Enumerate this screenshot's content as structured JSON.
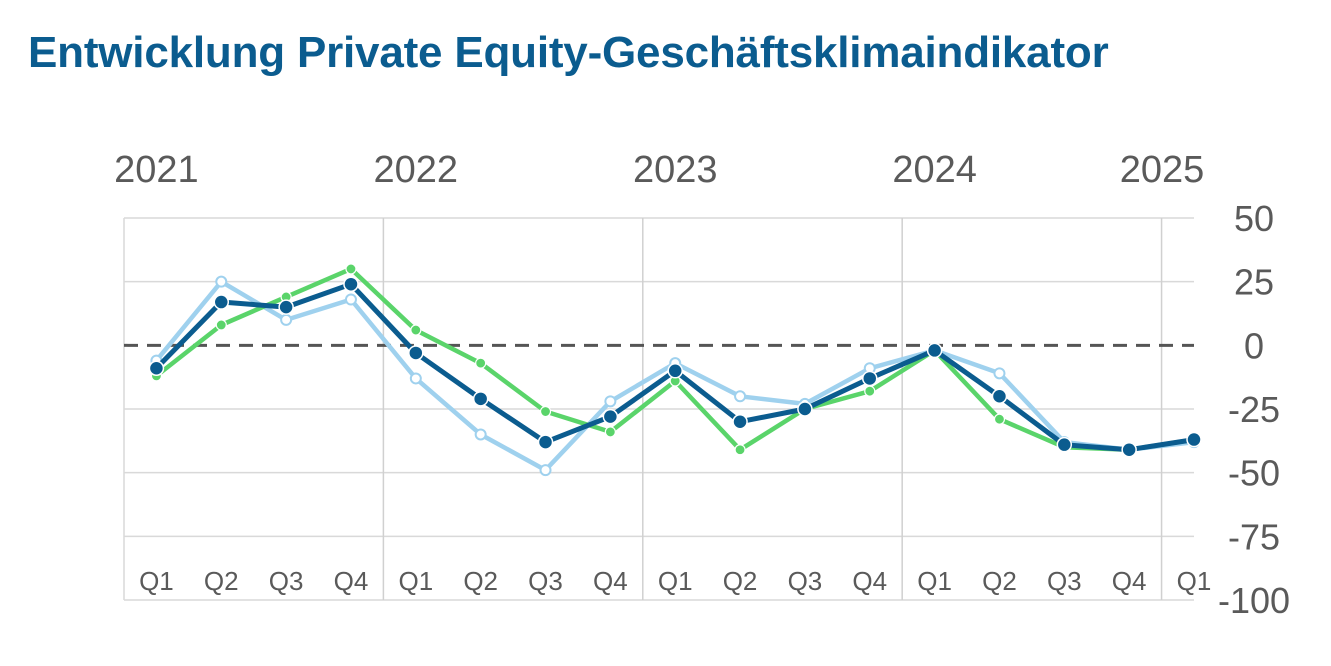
{
  "chart_data": {
    "type": "line",
    "title": "Entwicklung Private Equity-Geschäftsklimaindikator",
    "years": [
      "2021",
      "2022",
      "2023",
      "2024",
      "2025"
    ],
    "categories": [
      "Q1",
      "Q2",
      "Q3",
      "Q4",
      "Q1",
      "Q2",
      "Q3",
      "Q4",
      "Q1",
      "Q2",
      "Q3",
      "Q4",
      "Q1",
      "Q2",
      "Q3",
      "Q4",
      "Q1"
    ],
    "y_ticks": [
      "50",
      "25",
      "0",
      "-25",
      "-50",
      "-75",
      "-100"
    ],
    "ylim": [
      -100,
      50
    ],
    "zero_line": "dashed",
    "grid": true,
    "series": [
      {
        "color": "#9fd1ee",
        "marker": "open",
        "values": [
          -6,
          25,
          10,
          18,
          -13,
          -35,
          -49,
          -22,
          -7,
          -20,
          -23,
          -9,
          -2,
          -11,
          -38,
          -41,
          -38
        ]
      },
      {
        "color": "#5ad46a",
        "marker": "filled",
        "values": [
          -12,
          8,
          19,
          30,
          6,
          -7,
          -26,
          -34,
          -14,
          -41,
          -25,
          -18,
          -2,
          -29,
          -40,
          -41,
          -37
        ]
      },
      {
        "color": "#0b5c8f",
        "marker": "filled",
        "values": [
          -9,
          17,
          15,
          24,
          -3,
          -21,
          -38,
          -28,
          -10,
          -30,
          -25,
          -13,
          -2,
          -20,
          -39,
          -41,
          -37
        ]
      }
    ]
  }
}
